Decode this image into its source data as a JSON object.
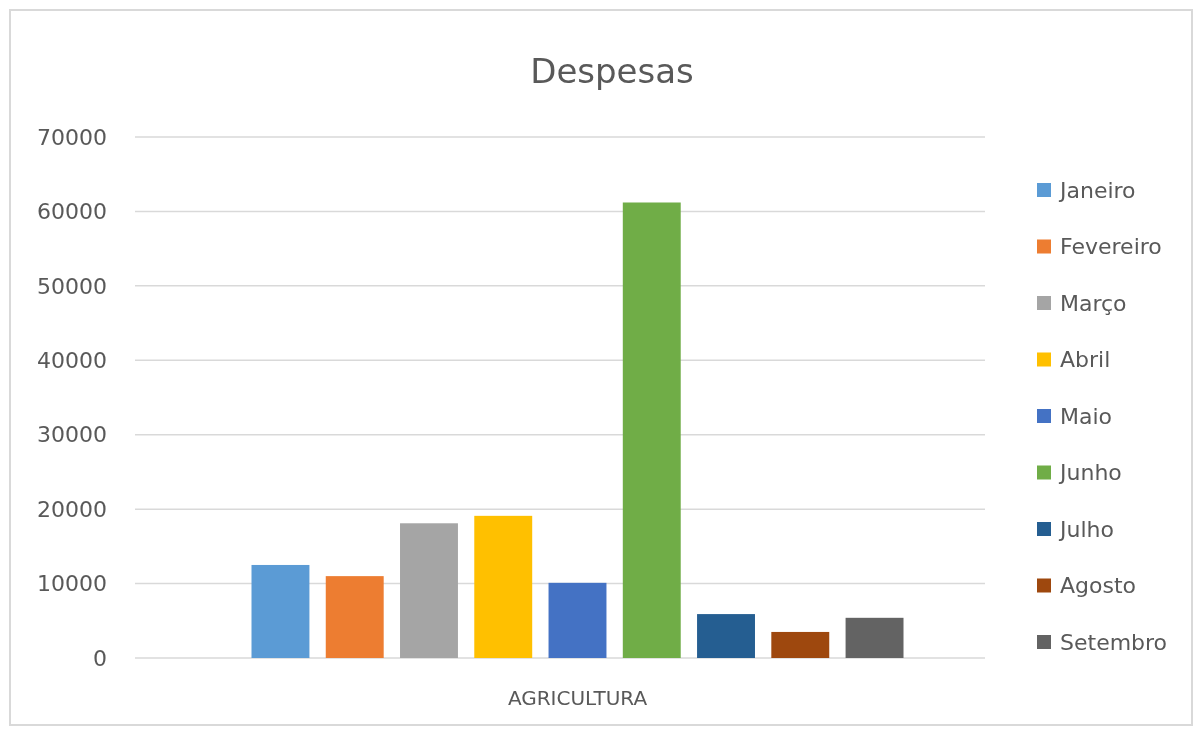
{
  "chart_data": {
    "type": "bar",
    "title": "Despesas",
    "categories": [
      "AGRICULTURA"
    ],
    "series": [
      {
        "name": "Janeiro",
        "color": "#5b9bd5",
        "values": [
          12500
        ]
      },
      {
        "name": "Fevereiro",
        "color": "#ed7d31",
        "values": [
          11000
        ]
      },
      {
        "name": "Março",
        "color": "#a5a5a5",
        "values": [
          18100
        ]
      },
      {
        "name": "Abril",
        "color": "#ffc000",
        "values": [
          19100
        ]
      },
      {
        "name": "Maio",
        "color": "#4472c4",
        "values": [
          10100
        ]
      },
      {
        "name": "Junho",
        "color": "#70ad47",
        "values": [
          61200
        ]
      },
      {
        "name": "Julho",
        "color": "#255e91",
        "values": [
          5900
        ]
      },
      {
        "name": "Agosto",
        "color": "#9e480e",
        "values": [
          3500
        ]
      },
      {
        "name": "Setembro",
        "color": "#636363",
        "values": [
          5400
        ]
      }
    ],
    "ylim": [
      0,
      70000
    ],
    "yticks": [
      0,
      10000,
      20000,
      30000,
      40000,
      50000,
      60000,
      70000
    ],
    "grid": "y",
    "legend": "right"
  }
}
